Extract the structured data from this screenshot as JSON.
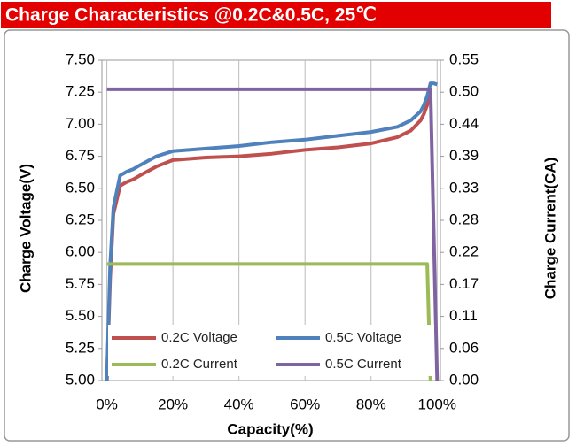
{
  "chart_data": {
    "type": "line",
    "title": "Charge  Characteristics @0.2C&0.5C, 25℃",
    "x_label": "Capacity(%)",
    "y_label": "Charge Voltage(V)",
    "y2_label": "Charge Current(CA)",
    "x": [
      0,
      1,
      2,
      4,
      6,
      8,
      10,
      15,
      20,
      30,
      40,
      50,
      60,
      70,
      80,
      88,
      92,
      95,
      96,
      97,
      98,
      99,
      100
    ],
    "series": [
      {
        "name": "0.2C Voltage",
        "color": "#c0504d",
        "values": [
          5.0,
          5.8,
          6.3,
          6.52,
          6.55,
          6.57,
          6.6,
          6.67,
          6.72,
          6.74,
          6.75,
          6.77,
          6.8,
          6.82,
          6.85,
          6.9,
          6.95,
          7.03,
          7.08,
          7.15,
          7.25,
          null,
          null
        ]
      },
      {
        "name": "0.5C Voltage",
        "color": "#4f81bd",
        "values": [
          5.0,
          5.9,
          6.35,
          6.6,
          6.63,
          6.65,
          6.68,
          6.75,
          6.79,
          6.81,
          6.83,
          6.86,
          6.88,
          6.91,
          6.94,
          6.98,
          7.03,
          7.1,
          7.15,
          7.22,
          7.32,
          7.32,
          7.31
        ]
      },
      {
        "name": "0.2C Current",
        "color": "#9bbb59",
        "axis": "y2",
        "values": [
          0.2,
          0.2,
          0.2,
          0.2,
          0.2,
          0.2,
          0.2,
          0.2,
          0.2,
          0.2,
          0.2,
          0.2,
          0.2,
          0.2,
          0.2,
          0.2,
          0.2,
          0.2,
          0.2,
          0.2,
          0.0,
          null,
          null
        ]
      },
      {
        "name": "0.5C Current",
        "color": "#8064a2",
        "axis": "y2",
        "values": [
          0.5,
          0.5,
          0.5,
          0.5,
          0.5,
          0.5,
          0.5,
          0.5,
          0.5,
          0.5,
          0.5,
          0.5,
          0.5,
          0.5,
          0.5,
          0.5,
          0.5,
          0.5,
          0.5,
          0.5,
          0.5,
          0.25,
          0.0
        ]
      }
    ],
    "xlim": [
      -1.5,
      101
    ],
    "xticks": [
      {
        "value": 0,
        "label": "0%"
      },
      {
        "value": 20,
        "label": "20%"
      },
      {
        "value": 40,
        "label": "40%"
      },
      {
        "value": 60,
        "label": "60%"
      },
      {
        "value": 80,
        "label": "80%"
      },
      {
        "value": 100,
        "label": "100%"
      }
    ],
    "ylim": [
      5.0,
      7.5
    ],
    "yticks": [
      {
        "value": 5,
        "label": "5.00"
      },
      5.25,
      {
        "value": 5.5,
        "label": "5.50"
      },
      5.75,
      {
        "value": 6,
        "label": "6.00"
      },
      6.25,
      {
        "value": 6.5,
        "label": "6.50"
      },
      6.75,
      {
        "value": 7,
        "label": "7.00"
      },
      7.25,
      {
        "value": 7.5,
        "label": "7.50"
      }
    ],
    "y2lim": [
      0,
      0.55
    ],
    "y2ticks": [
      {
        "value": 0,
        "label": "0.00"
      },
      {
        "value": 0.055,
        "label": "0.06"
      },
      0.11,
      {
        "value": 0.165,
        "label": "0.17"
      },
      0.22,
      {
        "value": 0.275,
        "label": "0.28"
      },
      0.33,
      {
        "value": 0.385,
        "label": "0.39"
      },
      0.44,
      {
        "value": 0.495,
        "label": "0.50"
      },
      0.55
    ],
    "grid": "x",
    "legend": "lower left"
  }
}
